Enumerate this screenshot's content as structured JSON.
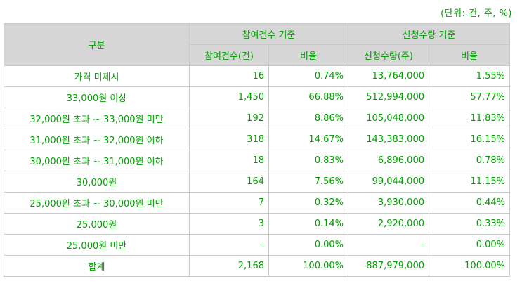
{
  "unit_note": "(단위: 건, 주, %)",
  "headers": {
    "category": "구분",
    "group_participation": "참여건수 기준",
    "group_subscription": "신청수량 기준",
    "participation_count": "참여건수(건)",
    "participation_ratio": "비율",
    "subscription_qty": "신청수량(주)",
    "subscription_ratio": "비율"
  },
  "rows": [
    {
      "label": "가격 미제시",
      "count": "16",
      "count_ratio": "0.74%",
      "qty": "13,764,000",
      "qty_ratio": "1.55%"
    },
    {
      "label": "33,000원 이상",
      "count": "1,450",
      "count_ratio": "66.88%",
      "qty": "512,994,000",
      "qty_ratio": "57.77%"
    },
    {
      "label": "32,000원 초과 ~ 33,000원 미만",
      "count": "192",
      "count_ratio": "8.86%",
      "qty": "105,048,000",
      "qty_ratio": "11.83%"
    },
    {
      "label": "31,000원 초과 ~ 32,000원 이하",
      "count": "318",
      "count_ratio": "14.67%",
      "qty": "143,383,000",
      "qty_ratio": "16.15%"
    },
    {
      "label": "30,000원 초과 ~ 31,000원 이하",
      "count": "18",
      "count_ratio": "0.83%",
      "qty": "6,896,000",
      "qty_ratio": "0.78%"
    },
    {
      "label": "30,000원",
      "count": "164",
      "count_ratio": "7.56%",
      "qty": "99,044,000",
      "qty_ratio": "11.15%"
    },
    {
      "label": "25,000원 초과 ~ 30,000원 미만",
      "count": "7",
      "count_ratio": "0.32%",
      "qty": "3,930,000",
      "qty_ratio": "0.44%"
    },
    {
      "label": "25,000원",
      "count": "3",
      "count_ratio": "0.14%",
      "qty": "2,920,000",
      "qty_ratio": "0.33%"
    },
    {
      "label": "25,000원 미만",
      "count": "-",
      "count_ratio": "0.00%",
      "qty": "-",
      "qty_ratio": "0.00%"
    },
    {
      "label": "합계",
      "count": "2,168",
      "count_ratio": "100.00%",
      "qty": "887,979,000",
      "qty_ratio": "100.00%"
    }
  ]
}
